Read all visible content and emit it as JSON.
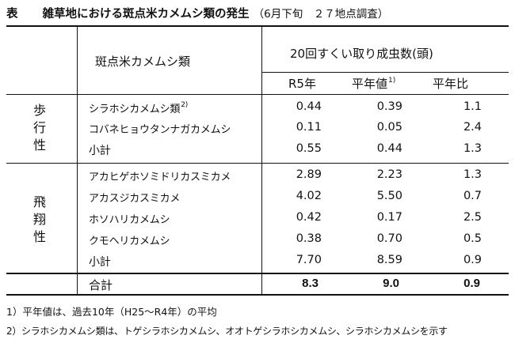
{
  "caption": {
    "table_label": "表",
    "title": "雑草地における斑点米カメムシ類の発生",
    "subtitle": "（6月下旬　２７地点調査）"
  },
  "header": {
    "species_col": "斑点米カメムシ類",
    "count_group": "20回すくい取り成虫数(頭)",
    "col_r5": "R5年",
    "col_avg": "平年値",
    "col_avg_sup": "1)",
    "col_ratio": "平年比"
  },
  "groups": [
    {
      "label_chars": [
        "歩",
        "行",
        "性"
      ],
      "rows": [
        {
          "name": "シラホシカメムシ類",
          "sup": "2)",
          "r5": "0.44",
          "avg": "0.39",
          "ratio": "1.1"
        },
        {
          "name": "コバネヒョウタンナガカメムシ",
          "sup": "",
          "r5": "0.11",
          "avg": "0.05",
          "ratio": "2.4"
        },
        {
          "name": "小計",
          "sup": "",
          "r5": "0.55",
          "avg": "0.44",
          "ratio": "1.3"
        }
      ]
    },
    {
      "label_chars": [
        "飛",
        "翔",
        "性"
      ],
      "rows": [
        {
          "name": "アカヒゲホソミドリカスミカメ",
          "sup": "",
          "r5": "2.89",
          "avg": "2.23",
          "ratio": "1.3"
        },
        {
          "name": "アカスジカスミカメ",
          "sup": "",
          "r5": "4.02",
          "avg": "5.50",
          "ratio": "0.7"
        },
        {
          "name": "ホソハリカメムシ",
          "sup": "",
          "r5": "0.42",
          "avg": "0.17",
          "ratio": "2.5"
        },
        {
          "name": "クモヘリカメムシ",
          "sup": "",
          "r5": "0.38",
          "avg": "0.70",
          "ratio": "0.5"
        },
        {
          "name": "小計",
          "sup": "",
          "r5": "7.70",
          "avg": "8.59",
          "ratio": "0.9"
        }
      ]
    }
  ],
  "total": {
    "label": "合計",
    "r5": "8.3",
    "avg": "9.0",
    "ratio": "0.9"
  },
  "notes": [
    "1）平年値は、過去10年（H25～R4年）の平均",
    "2）シラホシカメムシ類は、トゲシラホシカメムシ、オオトゲシラホシカメムシ、シラホシカメムシを示す"
  ]
}
